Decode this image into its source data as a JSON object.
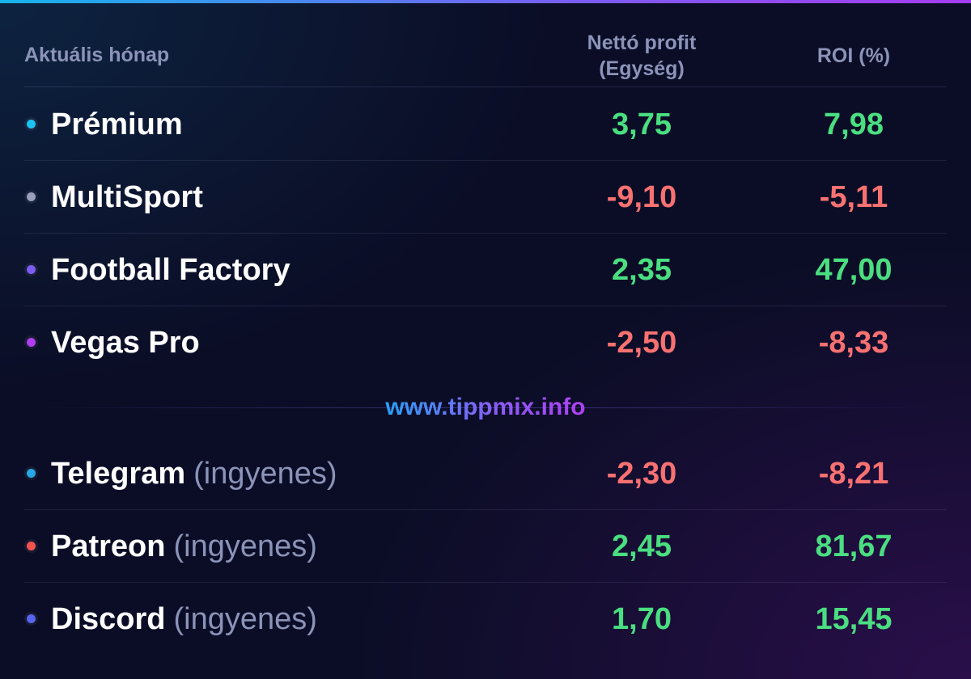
{
  "header": {
    "period_label": "Aktuális hónap",
    "col_profit": "Nettó profit",
    "col_profit_unit": "(Egység)",
    "col_roi": "ROI (%)"
  },
  "colors": {
    "positive": "#4ade80",
    "negative": "#f87171",
    "accent_gradient": [
      "#16b4f0",
      "#7b5cf5",
      "#a63cf0"
    ]
  },
  "paid_rows": [
    {
      "name": "Prémium",
      "dot": "#1cc3f2",
      "profit": "3,75",
      "roi": "7,98",
      "profit_sign": "pos",
      "roi_sign": "pos"
    },
    {
      "name": "MultiSport",
      "dot": "#9aa0bc",
      "profit": "-9,10",
      "roi": "-5,11",
      "profit_sign": "neg",
      "roi_sign": "neg"
    },
    {
      "name": "Football Factory",
      "dot": "#7b5cf5",
      "profit": "2,35",
      "roi": "47,00",
      "profit_sign": "pos",
      "roi_sign": "pos"
    },
    {
      "name": "Vegas Pro",
      "dot": "#b23cf0",
      "profit": "-2,50",
      "roi": "-8,33",
      "profit_sign": "neg",
      "roi_sign": "neg"
    }
  ],
  "website": "www.tippmix.info",
  "free_rows": [
    {
      "name": "Telegram",
      "sub": "(ingyenes)",
      "dot": "#27a7e5",
      "profit": "-2,30",
      "roi": "-8,21",
      "profit_sign": "neg",
      "roi_sign": "neg"
    },
    {
      "name": "Patreon",
      "sub": "(ingyenes)",
      "dot": "#f5524e",
      "profit": "2,45",
      "roi": "81,67",
      "profit_sign": "pos",
      "roi_sign": "pos"
    },
    {
      "name": "Discord",
      "sub": "(ingyenes)",
      "dot": "#5865f2",
      "profit": "1,70",
      "roi": "15,45",
      "profit_sign": "pos",
      "roi_sign": "pos"
    }
  ]
}
